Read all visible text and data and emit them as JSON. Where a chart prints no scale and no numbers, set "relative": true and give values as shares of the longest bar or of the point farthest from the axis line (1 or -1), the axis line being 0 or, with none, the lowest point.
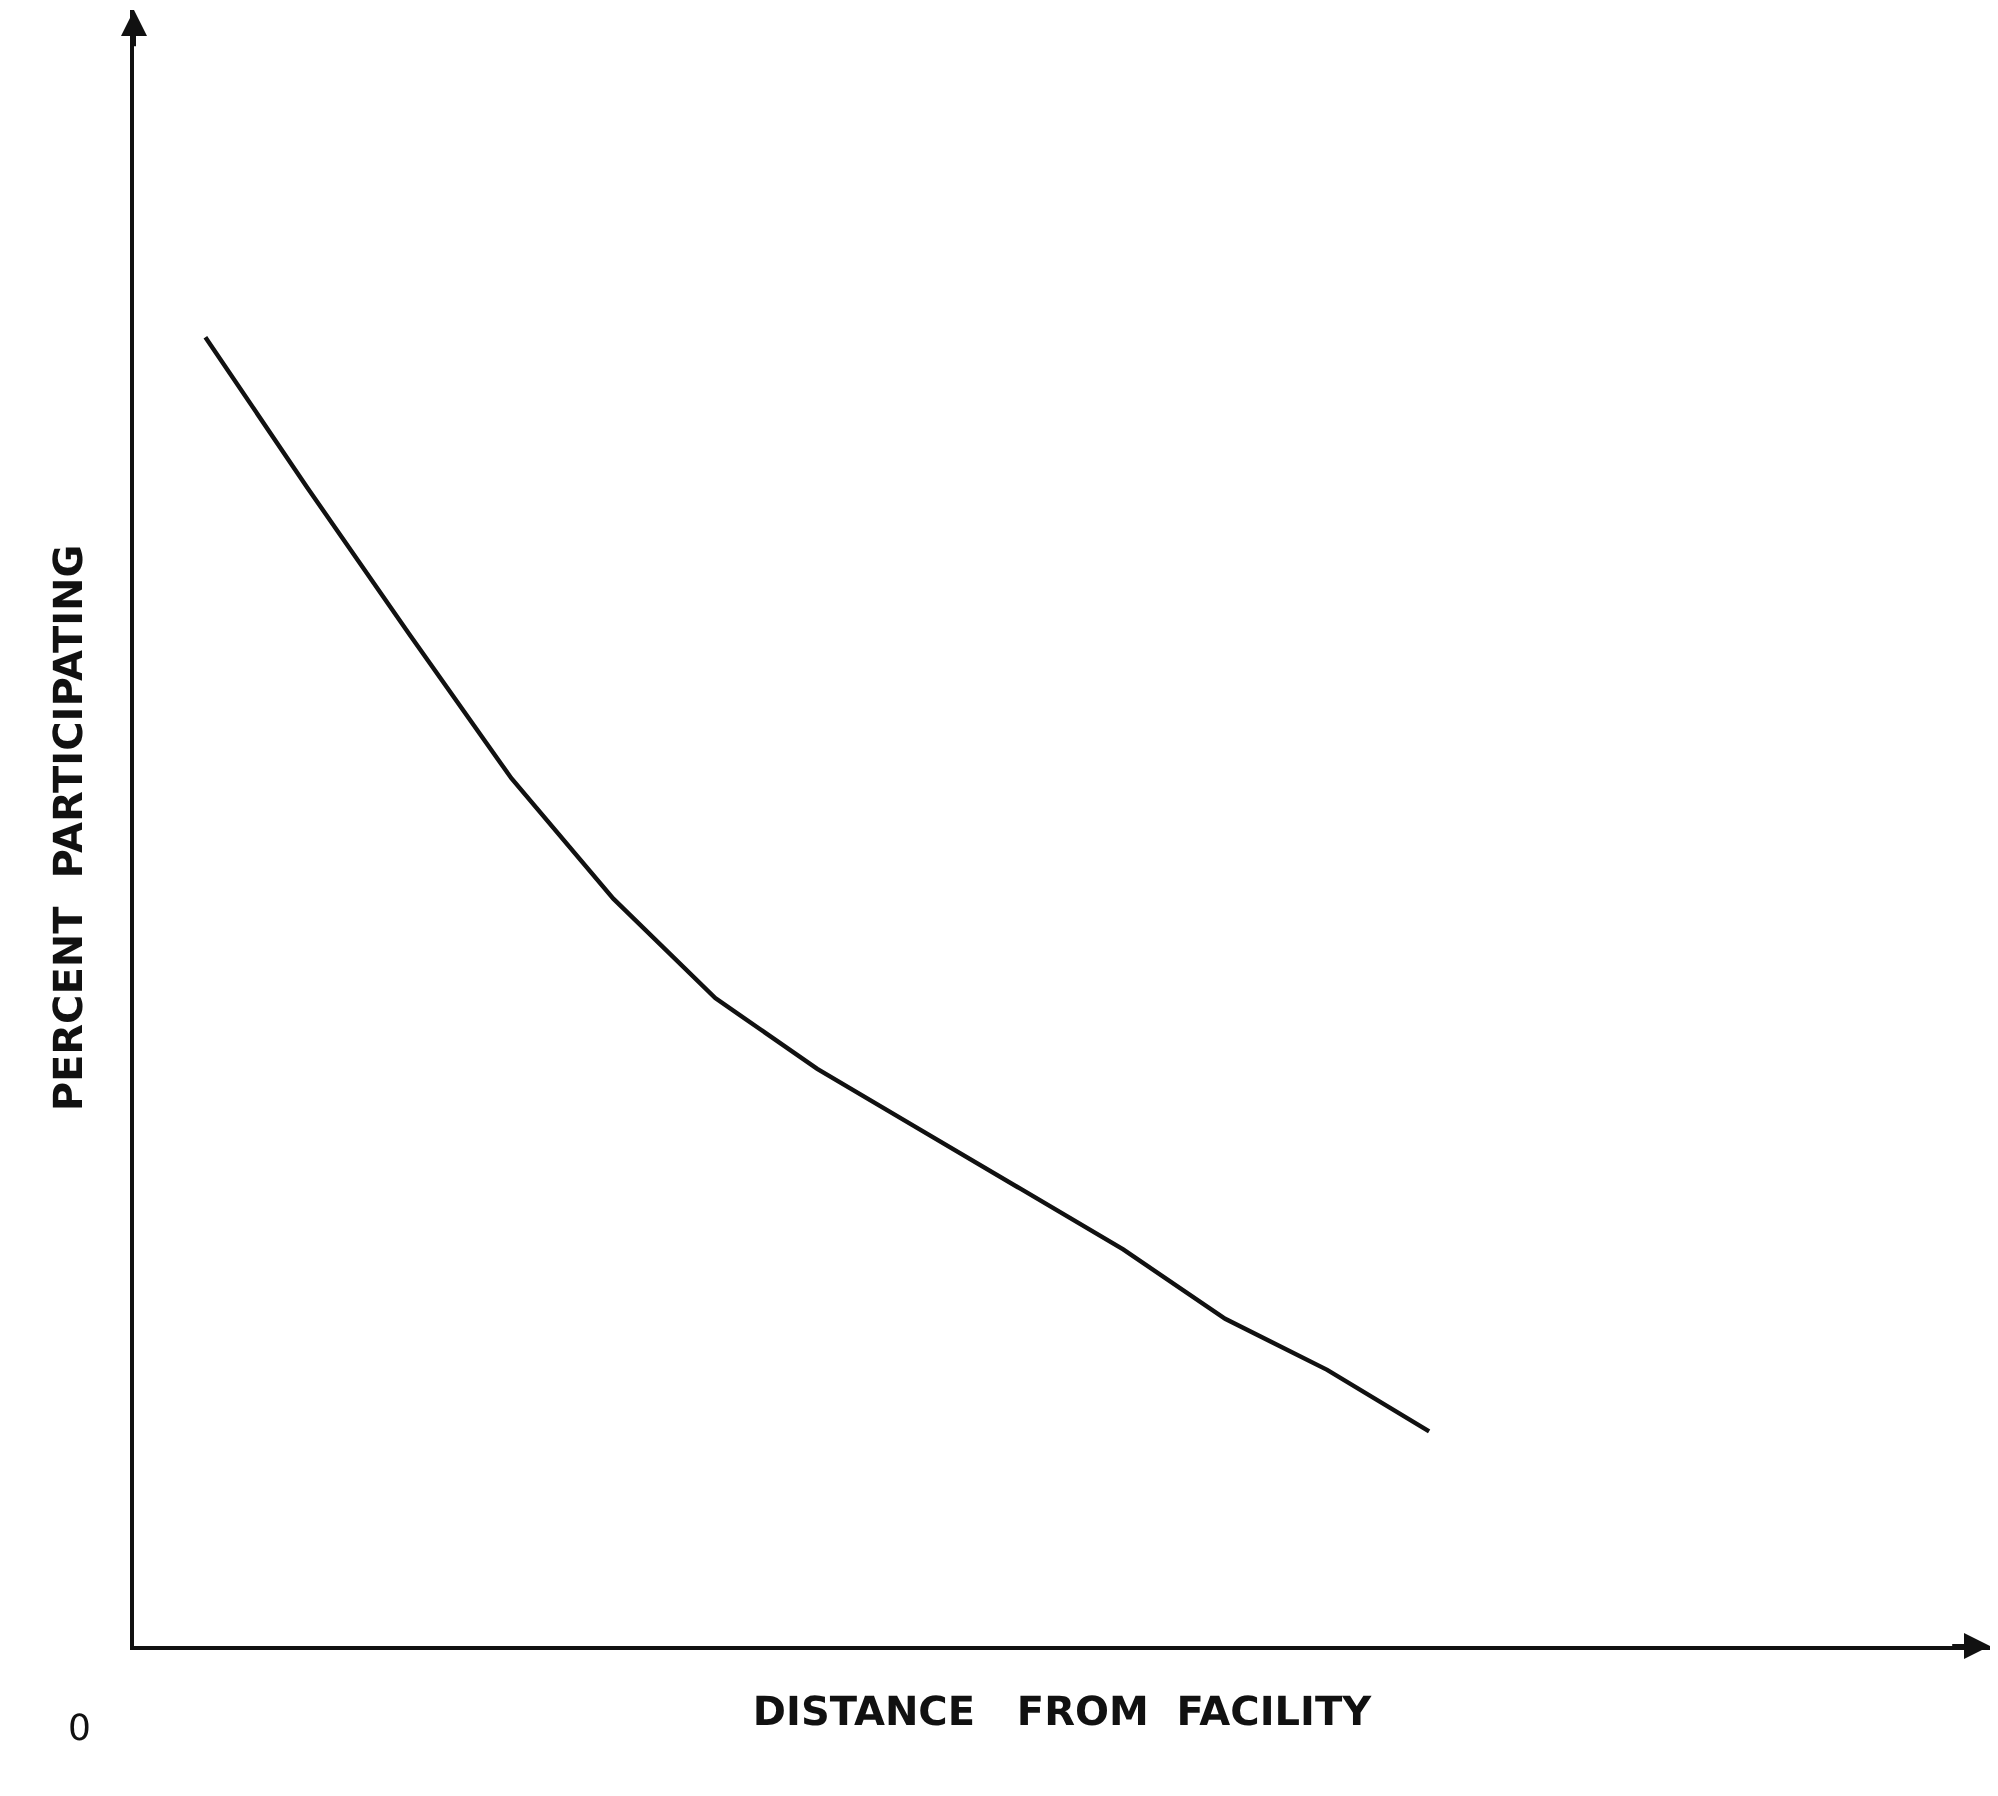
{
  "chart_data": {
    "type": "line",
    "relative": true,
    "xlabel": "DISTANCE   FROM  FACILITY",
    "ylabel": "PERCENT  PARTICIPATING",
    "annotations": [
      "0"
    ],
    "categories": [
      null,
      null,
      null,
      null,
      null,
      null,
      null,
      null,
      null,
      null,
      null,
      null,
      null
    ],
    "series": [
      {
        "color": "#111111",
        "values": [
          1,
          0.885,
          0.773,
          0.663,
          0.571,
          0.495,
          0.441,
          0.395,
          0.349,
          0.303,
          0.25,
          0.211,
          0.164
        ]
      }
    ],
    "grid": false,
    "marker": "none",
    "line_style": "solid"
  }
}
